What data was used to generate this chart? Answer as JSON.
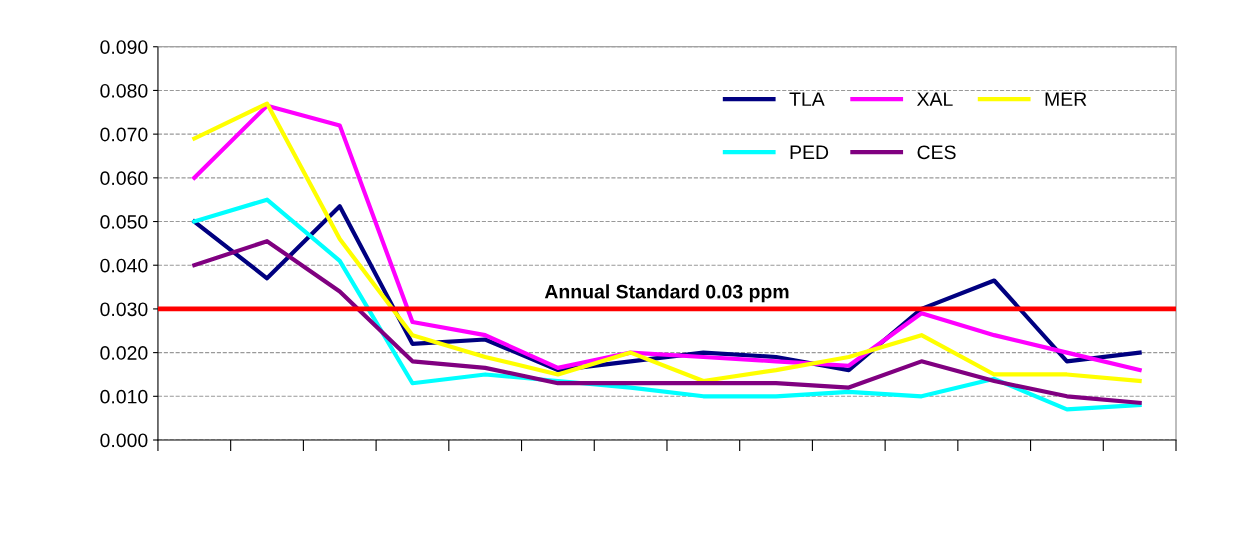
{
  "chart_data": {
    "type": "line",
    "categories": [
      null,
      null,
      null,
      null,
      null,
      null,
      null,
      null,
      null,
      null,
      null,
      null,
      null,
      null
    ],
    "series": [
      {
        "name": "TLA",
        "color": "#000080",
        "values": [
          0.05,
          0.037,
          0.0535,
          0.022,
          0.023,
          0.016,
          0.018,
          0.02,
          0.019,
          0.016,
          0.03,
          0.0365,
          0.018,
          0.02
        ]
      },
      {
        "name": "XAL",
        "color": "#ff00ff",
        "values": [
          0.06,
          0.0765,
          0.072,
          0.027,
          0.024,
          0.0165,
          0.02,
          0.019,
          0.018,
          0.017,
          0.029,
          0.024,
          0.02,
          0.016
        ]
      },
      {
        "name": "MER",
        "color": "#ffff00",
        "values": [
          0.069,
          0.077,
          0.046,
          0.024,
          0.019,
          0.015,
          0.02,
          0.0135,
          0.016,
          0.019,
          0.024,
          0.015,
          0.015,
          0.0135
        ]
      },
      {
        "name": "PED",
        "color": "#00ffff",
        "values": [
          0.05,
          0.055,
          0.041,
          0.013,
          0.015,
          0.0135,
          0.012,
          0.01,
          0.01,
          0.011,
          0.01,
          0.014,
          0.007,
          0.008
        ]
      },
      {
        "name": "CES",
        "color": "#800080",
        "values": [
          0.04,
          0.0455,
          0.034,
          0.018,
          0.0165,
          0.013,
          0.013,
          0.013,
          0.013,
          0.012,
          0.018,
          0.0135,
          0.01,
          0.0085
        ]
      }
    ],
    "ylim": [
      0,
      0.09
    ],
    "yticks": [
      {
        "value": 0,
        "label": "0.000"
      },
      {
        "value": 0.01,
        "label": "0.010"
      },
      {
        "value": 0.02,
        "label": "0.020"
      },
      {
        "value": 0.03,
        "label": "0.030"
      },
      {
        "value": 0.04,
        "label": "0.040"
      },
      {
        "value": 0.05,
        "label": "0.050"
      },
      {
        "value": 0.06,
        "label": "0.060"
      },
      {
        "value": 0.07,
        "label": "0.070"
      },
      {
        "value": 0.08,
        "label": "0.080"
      },
      {
        "value": 0.09,
        "label": "0.090"
      }
    ],
    "ref_lines": [
      {
        "axis": "y",
        "value": 0.03,
        "label": "Annual Standard 0.03 ppm",
        "color": "#ff0000"
      }
    ],
    "grid": "y",
    "legend": "top right",
    "marker": "none",
    "line_style": "solid"
  }
}
